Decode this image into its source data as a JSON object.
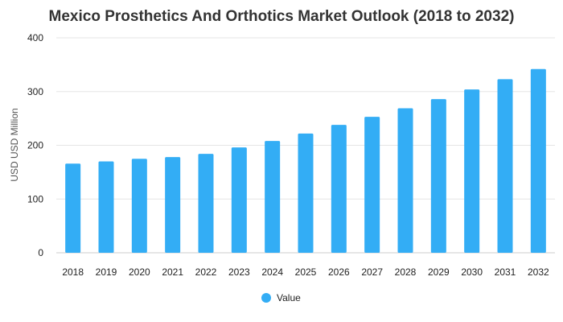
{
  "chart_data": {
    "type": "bar",
    "title": "Mexico Prosthetics And Orthotics Market Outlook (2018 to 2032)",
    "xlabel": "",
    "ylabel": "USD USD Million",
    "categories": [
      "2018",
      "2019",
      "2020",
      "2021",
      "2022",
      "2023",
      "2024",
      "2025",
      "2026",
      "2027",
      "2028",
      "2029",
      "2030",
      "2031",
      "2032"
    ],
    "series": [
      {
        "name": "Value",
        "values": [
          166,
          170,
          175,
          178,
          184,
          196,
          208,
          222,
          238,
          253,
          269,
          286,
          304,
          323,
          342
        ]
      }
    ],
    "ylim": [
      0,
      400
    ],
    "yticks": [
      0,
      100,
      200,
      300,
      400
    ],
    "grid": true,
    "legend": "bottom-center",
    "colors": {
      "bar": "#33adf5",
      "grid": "#e6e6e6",
      "title": "#333333"
    }
  }
}
